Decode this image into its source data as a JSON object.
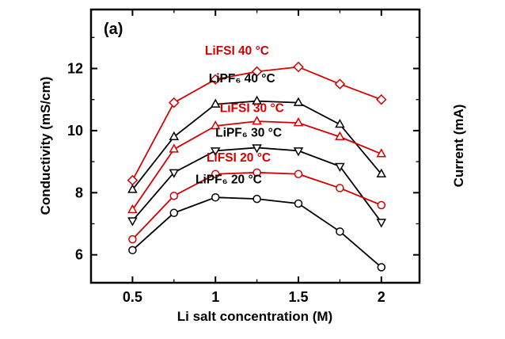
{
  "chart_data": {
    "type": "line",
    "panel_label": "(a)",
    "title": "",
    "xlabel": "Li salt concentration (M)",
    "ylabel": "Conductivity (mS/cm)",
    "ylabel_right": "Current (mA)",
    "xlim": [
      0.25,
      2.23
    ],
    "ylim": [
      5.1,
      13.9
    ],
    "xticks": [
      0.5,
      1,
      1.5,
      2
    ],
    "xtick_labels": [
      "0.5",
      "1",
      "1.5",
      "2"
    ],
    "xminor": [
      0.75,
      1.25,
      1.75
    ],
    "yticks": [
      6,
      8,
      10,
      12
    ],
    "ytick_labels": [
      "6",
      "8",
      "10",
      "12"
    ],
    "yminor": [
      7,
      9,
      11,
      13
    ],
    "grid": false,
    "legend_position": "inline-annotations",
    "colors": {
      "red_series": "#d40000",
      "black_series": "#000000"
    },
    "x": [
      0.5,
      0.75,
      1.0,
      1.25,
      1.5,
      1.75,
      2.0
    ],
    "series": [
      {
        "name": "LiFSI 40 °C",
        "color": "#d40000",
        "marker": "diamond",
        "values": [
          8.4,
          10.9,
          11.65,
          11.9,
          12.05,
          11.5,
          11.0
        ]
      },
      {
        "name": "LiPF₆ 40 °C",
        "color": "#000000",
        "marker": "triangle-up",
        "values": [
          8.1,
          9.8,
          10.85,
          10.95,
          10.9,
          10.2,
          8.6
        ]
      },
      {
        "name": "LiFSI 30 °C",
        "color": "#d40000",
        "marker": "triangle-up",
        "values": [
          7.45,
          9.4,
          10.15,
          10.3,
          10.25,
          9.8,
          9.25
        ]
      },
      {
        "name": "LiPF₆ 30 °C",
        "color": "#000000",
        "marker": "triangle-down",
        "values": [
          7.1,
          8.65,
          9.35,
          9.45,
          9.35,
          8.85,
          7.05
        ]
      },
      {
        "name": "LiFSI 20 °C",
        "color": "#d40000",
        "marker": "circle",
        "values": [
          6.5,
          7.9,
          8.6,
          8.65,
          8.6,
          8.15,
          7.6
        ]
      },
      {
        "name": "LiPF₆ 20 °C",
        "color": "#000000",
        "marker": "circle",
        "values": [
          6.15,
          7.35,
          7.85,
          7.8,
          7.65,
          6.75,
          5.6
        ]
      }
    ],
    "annotations": [
      {
        "text": "LiFSI 40 °C",
        "color": "#d40000",
        "x": 1.13,
        "y": 12.45
      },
      {
        "text": "LiPF₆ 40 °C",
        "color": "#000000",
        "x": 1.16,
        "y": 11.55
      },
      {
        "text": "LiFSI 30 °C",
        "color": "#d40000",
        "x": 1.22,
        "y": 10.6
      },
      {
        "text": "LiPF₆ 30 °C",
        "color": "#000000",
        "x": 1.2,
        "y": 9.8
      },
      {
        "text": "LiFSI 20 °C",
        "color": "#d40000",
        "x": 1.14,
        "y": 9.0
      },
      {
        "text": "LiPF₆ 20 °C",
        "color": "#000000",
        "x": 1.08,
        "y": 8.3
      }
    ]
  }
}
